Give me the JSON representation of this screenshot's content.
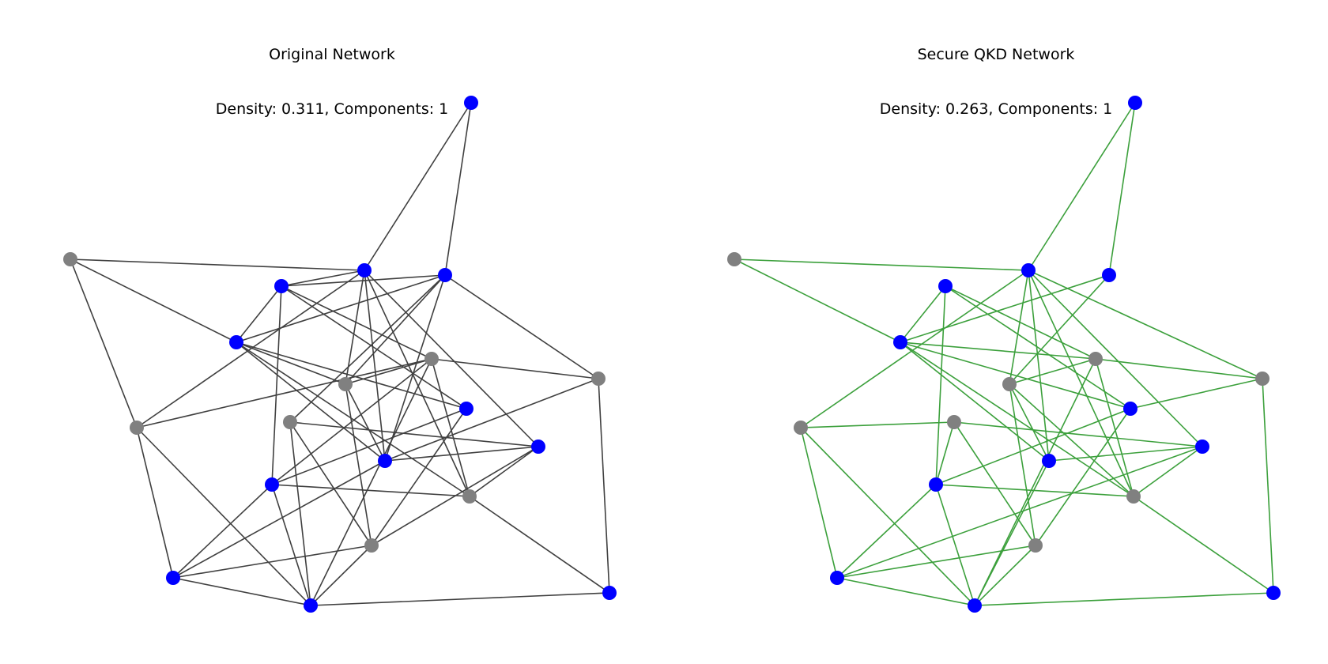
{
  "colors": {
    "node_blue": "#0000ff",
    "node_gray": "#808080",
    "edge_original": "#404040",
    "edge_secure": "#3ca03c"
  },
  "panels": [
    {
      "title": "Original Network",
      "subtitle": "Density: 0.311, Components: 1",
      "edge_color_key": "edge_original"
    },
    {
      "title": "Secure QKD Network",
      "subtitle": "Density: 0.263, Components: 1",
      "edge_color_key": "edge_secure"
    }
  ]
}
